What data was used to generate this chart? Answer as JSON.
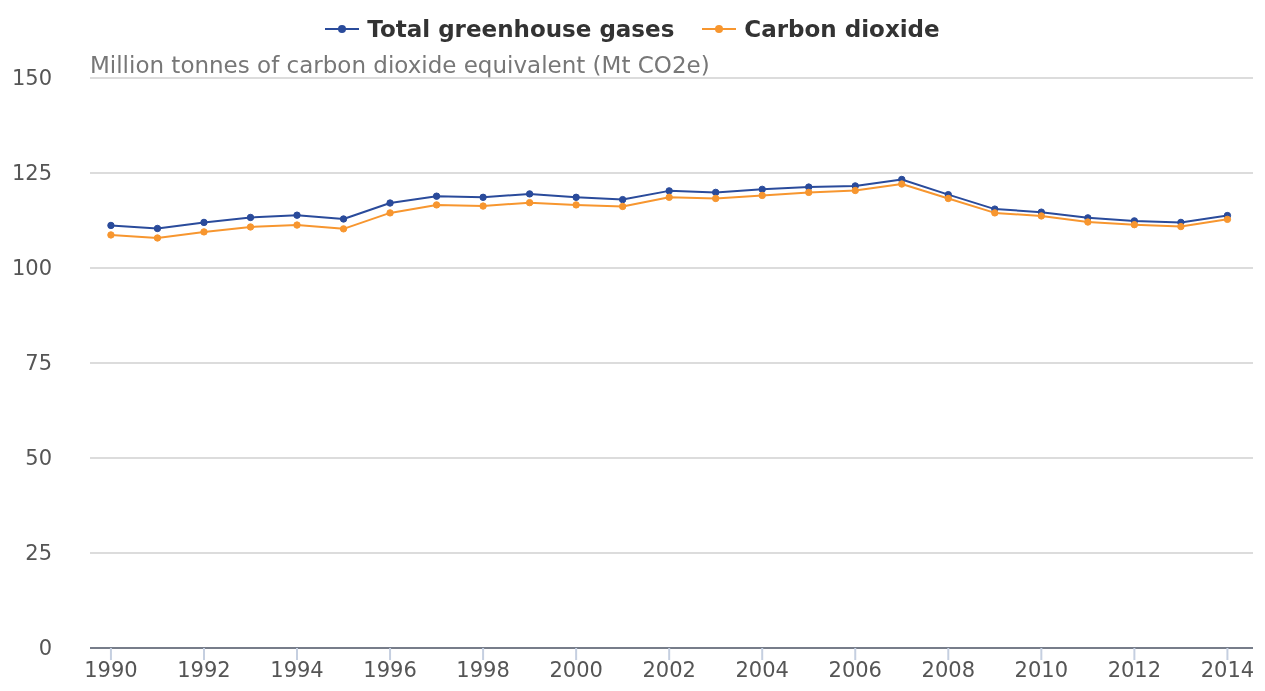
{
  "chart_data": {
    "type": "line",
    "ylabel": "Million tonnes of carbon dioxide equivalent (Mt CO2e)",
    "x": [
      1990,
      1991,
      1992,
      1993,
      1994,
      1995,
      1996,
      1997,
      1998,
      1999,
      2000,
      2001,
      2002,
      2003,
      2004,
      2005,
      2006,
      2007,
      2008,
      2009,
      2010,
      2011,
      2012,
      2013,
      2014
    ],
    "series": [
      {
        "name": "Total greenhouse gases",
        "color": "#2a4b9b",
        "values": [
          111.2,
          110.4,
          112.0,
          113.3,
          113.9,
          112.9,
          117.1,
          118.9,
          118.6,
          119.5,
          118.6,
          118.0,
          120.3,
          119.9,
          120.7,
          121.3,
          121.6,
          123.3,
          119.3,
          115.5,
          114.7,
          113.2,
          112.4,
          112.0,
          113.8
        ]
      },
      {
        "name": "Carbon dioxide",
        "color": "#f7962f",
        "values": [
          108.7,
          107.9,
          109.5,
          110.8,
          111.3,
          110.3,
          114.5,
          116.6,
          116.3,
          117.2,
          116.6,
          116.2,
          118.6,
          118.3,
          119.1,
          119.9,
          120.4,
          122.1,
          118.3,
          114.5,
          113.7,
          112.1,
          111.4,
          110.9,
          112.8
        ]
      }
    ],
    "xlim": [
      1989.55,
      2014.55
    ],
    "xticks": [
      1990,
      1992,
      1994,
      1996,
      1998,
      2000,
      2002,
      2004,
      2006,
      2008,
      2010,
      2012,
      2014
    ],
    "ylim": [
      0,
      150
    ],
    "yticks": [
      0,
      25,
      50,
      75,
      100,
      125,
      150
    ],
    "grid": "y",
    "legend": "top",
    "marker": "circle",
    "line_style": "solid"
  }
}
